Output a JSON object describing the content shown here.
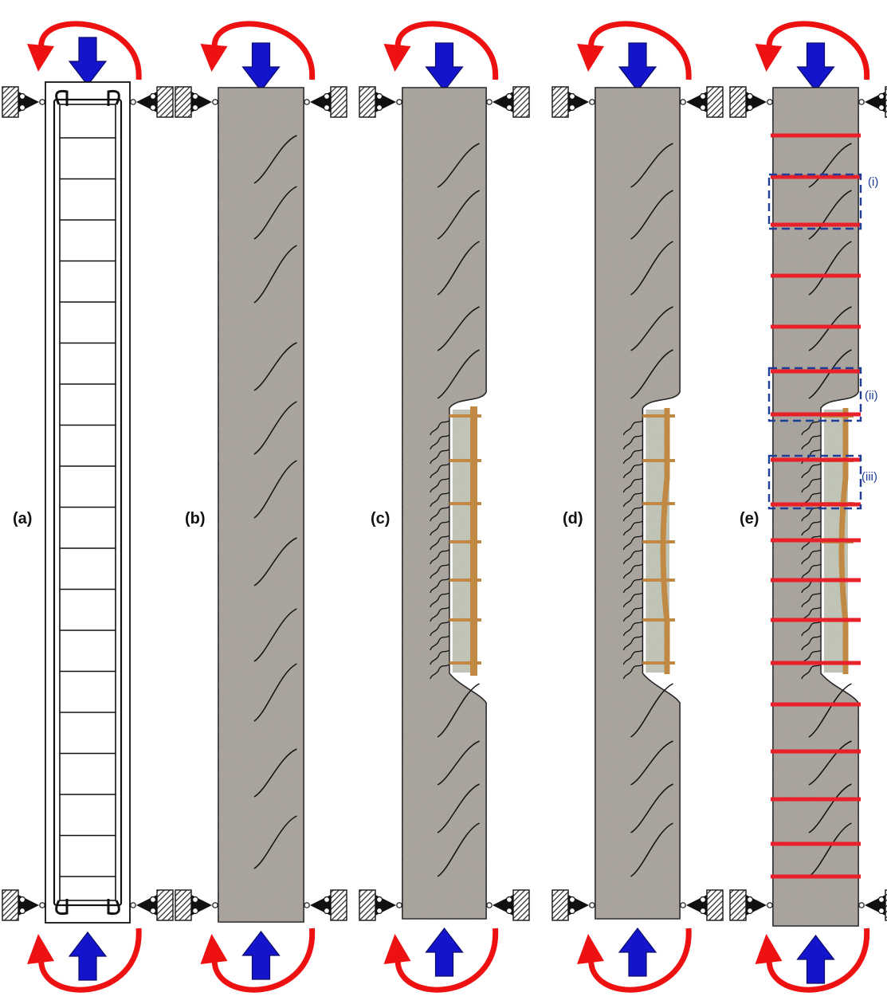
{
  "panels": [
    {
      "label": "(a)",
      "kind": "reinforcement-cage"
    },
    {
      "label": "(b)",
      "kind": "cracked-column"
    },
    {
      "label": "(c)",
      "kind": "spalled-column"
    },
    {
      "label": "(d)",
      "kind": "spalled-column-buckled-bar"
    },
    {
      "label": "(e)",
      "kind": "repaired-column-with-straps"
    }
  ],
  "regions": [
    {
      "label": "(i)"
    },
    {
      "label": "(ii)"
    },
    {
      "label": "(iii)"
    }
  ],
  "colors": {
    "axial_arrow": "#1414cc",
    "moment_arrow": "#ee1111",
    "concrete": "#a59f97",
    "rebar_exposed": "#c08a45",
    "strap": "#e8202a",
    "region_box": "#1f3d99",
    "support_hatch": "#222222"
  },
  "icons": {
    "axial_load": "arrow-down-icon",
    "moment": "curved-arrow-icon",
    "support": "pin-roller-support-icon"
  }
}
